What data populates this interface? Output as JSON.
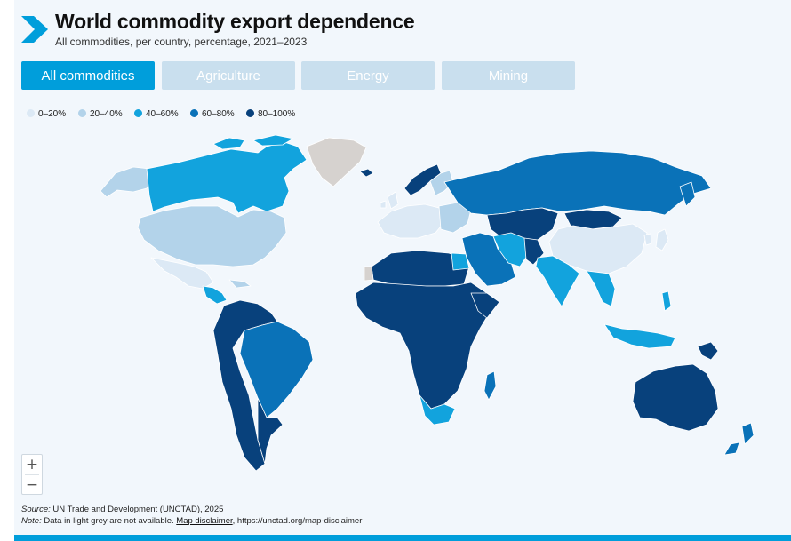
{
  "header": {
    "title": "World commodity export dependence",
    "subtitle": "All commodities, per country, percentage, 2021–2023",
    "logo_icon": "chevron-right-icon"
  },
  "tabs": [
    {
      "label": "All commodities",
      "active": true
    },
    {
      "label": "Agriculture",
      "active": false
    },
    {
      "label": "Energy",
      "active": false
    },
    {
      "label": "Mining",
      "active": false
    }
  ],
  "legend": [
    {
      "label": "0–20%",
      "color": "#dce9f5"
    },
    {
      "label": "20–40%",
      "color": "#b3d3ea"
    },
    {
      "label": "40–60%",
      "color": "#12a3dd"
    },
    {
      "label": "60–80%",
      "color": "#0a72b8"
    },
    {
      "label": "80–100%",
      "color": "#08417c"
    }
  ],
  "map": {
    "no_data_color": "#d6d2cf",
    "ocean_color": "#f2f7fc",
    "regions": [
      {
        "name": "Alaska",
        "band": "20–40%"
      },
      {
        "name": "Canada",
        "band": "40–60%"
      },
      {
        "name": "Greenland",
        "band": "no data"
      },
      {
        "name": "United States",
        "band": "20–40%"
      },
      {
        "name": "Mexico",
        "band": "0–20%"
      },
      {
        "name": "Central America",
        "band": "40–60%"
      },
      {
        "name": "Northern South America",
        "band": "80–100%"
      },
      {
        "name": "Brazil",
        "band": "60–80%"
      },
      {
        "name": "Southern South America",
        "band": "80–100%"
      },
      {
        "name": "Iceland",
        "band": "80–100%"
      },
      {
        "name": "Norway",
        "band": "80–100%"
      },
      {
        "name": "Western Europe",
        "band": "0–20%"
      },
      {
        "name": "Eastern Europe",
        "band": "20–40%"
      },
      {
        "name": "Russia",
        "band": "60–80%"
      },
      {
        "name": "Central Asia",
        "band": "80–100%"
      },
      {
        "name": "Mongolia",
        "band": "80–100%"
      },
      {
        "name": "Middle East",
        "band": "60–80%"
      },
      {
        "name": "Iran",
        "band": "40–60%"
      },
      {
        "name": "Africa",
        "band": "80–100%"
      },
      {
        "name": "South Africa",
        "band": "40–60%"
      },
      {
        "name": "Madagascar",
        "band": "60–80%"
      },
      {
        "name": "India",
        "band": "40–60%"
      },
      {
        "name": "China",
        "band": "0–20%"
      },
      {
        "name": "Southeast Asia",
        "band": "40–60%"
      },
      {
        "name": "Japan",
        "band": "0–20%"
      },
      {
        "name": "Indonesia",
        "band": "40–60%"
      },
      {
        "name": "Papua New Guinea",
        "band": "80–100%"
      },
      {
        "name": "Australia",
        "band": "80–100%"
      },
      {
        "name": "New Zealand",
        "band": "60–80%"
      }
    ]
  },
  "zoom": {
    "in_label": "+",
    "out_label": "−"
  },
  "footer": {
    "source_prefix": "Source:",
    "source_text": " UN Trade and Development (UNCTAD), 2025",
    "note_prefix": "Note:",
    "note_text": " Data in light grey are not available. ",
    "disclaimer_link": "Map disclaimer",
    "disclaimer_url_text": ", https://unctad.org/map-disclaimer"
  }
}
